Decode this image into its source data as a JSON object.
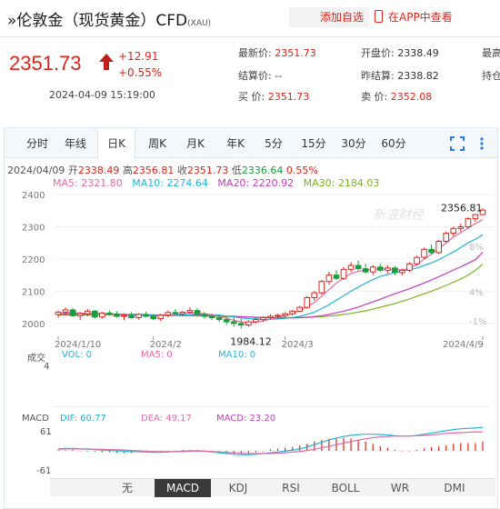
{
  "header": {
    "title": "»伦敦金（现货黄金）CFD",
    "symbol": "(XAU)",
    "add_fav": "添加自选",
    "app_view": "在APP中查看"
  },
  "quote": {
    "price": "2351.73",
    "change_abs": "+12.91",
    "change_pct": "+0.55%",
    "timestamp": "2024-04-09 15:19:00",
    "fields": [
      {
        "label": "最新价:",
        "value": "2351.73"
      },
      {
        "label": "开盘价:",
        "value": "2338.49"
      },
      {
        "label": "最高价:",
        "value": ""
      },
      {
        "label": "结算价:",
        "value": "--"
      },
      {
        "label": "昨结算:",
        "value": "2338.82"
      },
      {
        "label": "持仓量:",
        "value": ""
      },
      {
        "label": "买  价:",
        "value": "2351.73"
      },
      {
        "label": "卖  价:",
        "value": "2352.08"
      },
      {
        "label": "",
        "value": ""
      }
    ]
  },
  "tabs": [
    "分时",
    "年线",
    "日K",
    "周K",
    "月K",
    "年K",
    "5分",
    "15分",
    "30分",
    "60分"
  ],
  "active_tab": "日K",
  "chart_info": {
    "date": "2024/04/09",
    "open_label": "开",
    "open": "2338.49",
    "high_label": "高",
    "high": "2356.81",
    "close_label": "收",
    "close": "2351.73",
    "low_label": "低",
    "low": "2336.64",
    "pct": "0.55%",
    "ma5": "MA5: 2321.80",
    "ma10": "MA10: 2274.64",
    "ma20": "MA20: 2220.92",
    "ma30": "MA30: 2184.03",
    "max_label": "2356.81",
    "min_label": "1984.12",
    "watermark": "新浪财经"
  },
  "volume": {
    "title": "成交",
    "vol": "VOL: 0",
    "ma5": "MA5: 0",
    "ma10": "MA10: 0",
    "axis_top": "4"
  },
  "macd": {
    "title": "MACD",
    "dif": "DIF: 60.77",
    "dea": "DEA: 49.17",
    "macd": "MACD: 23.20",
    "axis_top": "61",
    "axis_bottom": "-61"
  },
  "indicator_tabs": [
    "无",
    "MACD",
    "KDJ",
    "RSI",
    "BOLL",
    "WR",
    "DMI"
  ],
  "active_indicator": "MACD",
  "colors": {
    "up": "#e0241a",
    "down": "#1a9e3a",
    "ma5": "#e36ba6",
    "ma10": "#24b5d6",
    "ma20": "#c43cb8",
    "ma30": "#7bb51f"
  },
  "chart_data": {
    "type": "candlestick",
    "x_ticks": [
      "2024/1/10",
      "2024/2",
      "2024/3",
      "2024/4/9"
    ],
    "y_ticks": [
      2400,
      2300,
      2200,
      2100,
      2000
    ],
    "pct_ticks": [
      "8%",
      "4%",
      "-1%"
    ],
    "ylim": [
      1960,
      2420
    ],
    "ohlc": [
      [
        2028,
        2040,
        2018,
        2035
      ],
      [
        2035,
        2050,
        2025,
        2042
      ],
      [
        2042,
        2048,
        2020,
        2024
      ],
      [
        2024,
        2035,
        2010,
        2030
      ],
      [
        2030,
        2045,
        2022,
        2038
      ],
      [
        2038,
        2042,
        2015,
        2020
      ],
      [
        2020,
        2036,
        2015,
        2032
      ],
      [
        2032,
        2040,
        2025,
        2029
      ],
      [
        2029,
        2038,
        2018,
        2022
      ],
      [
        2022,
        2030,
        2010,
        2025
      ],
      [
        2025,
        2035,
        2015,
        2018
      ],
      [
        2018,
        2032,
        2012,
        2028
      ],
      [
        2028,
        2036,
        2020,
        2022
      ],
      [
        2022,
        2028,
        2010,
        2015
      ],
      [
        2015,
        2030,
        2008,
        2026
      ],
      [
        2026,
        2040,
        2020,
        2034
      ],
      [
        2034,
        2045,
        2028,
        2030
      ],
      [
        2030,
        2038,
        2022,
        2035
      ],
      [
        2035,
        2050,
        2030,
        2040
      ],
      [
        2040,
        2048,
        2025,
        2028
      ],
      [
        2028,
        2035,
        2015,
        2022
      ],
      [
        2022,
        2030,
        2010,
        2018
      ],
      [
        2018,
        2026,
        2005,
        2012
      ],
      [
        2012,
        2020,
        1995,
        2005
      ],
      [
        2005,
        2018,
        1990,
        2000
      ],
      [
        2000,
        2015,
        1984,
        1995
      ],
      [
        1995,
        2010,
        1990,
        2005
      ],
      [
        2005,
        2018,
        2000,
        2012
      ],
      [
        2012,
        2022,
        2005,
        2018
      ],
      [
        2018,
        2028,
        2012,
        2022
      ],
      [
        2022,
        2030,
        2015,
        2025
      ],
      [
        2025,
        2035,
        2018,
        2030
      ],
      [
        2030,
        2042,
        2025,
        2038
      ],
      [
        2038,
        2055,
        2035,
        2050
      ],
      [
        2050,
        2085,
        2045,
        2080
      ],
      [
        2080,
        2100,
        2070,
        2095
      ],
      [
        2095,
        2135,
        2090,
        2130
      ],
      [
        2130,
        2160,
        2120,
        2150
      ],
      [
        2150,
        2165,
        2135,
        2140
      ],
      [
        2140,
        2175,
        2135,
        2168
      ],
      [
        2168,
        2190,
        2160,
        2180
      ],
      [
        2180,
        2195,
        2165,
        2170
      ],
      [
        2170,
        2185,
        2155,
        2160
      ],
      [
        2160,
        2180,
        2150,
        2175
      ],
      [
        2175,
        2185,
        2160,
        2165
      ],
      [
        2165,
        2180,
        2155,
        2172
      ],
      [
        2172,
        2178,
        2150,
        2158
      ],
      [
        2158,
        2170,
        2150,
        2165
      ],
      [
        2165,
        2190,
        2160,
        2185
      ],
      [
        2185,
        2210,
        2180,
        2205
      ],
      [
        2205,
        2235,
        2200,
        2230
      ],
      [
        2230,
        2245,
        2215,
        2220
      ],
      [
        2220,
        2260,
        2215,
        2255
      ],
      [
        2255,
        2285,
        2250,
        2280
      ],
      [
        2280,
        2300,
        2270,
        2295
      ],
      [
        2295,
        2310,
        2285,
        2300
      ],
      [
        2300,
        2330,
        2295,
        2325
      ],
      [
        2325,
        2340,
        2315,
        2338
      ],
      [
        2338,
        2357,
        2336,
        2352
      ]
    ],
    "ma5": [
      2030,
      2032,
      2034,
      2032,
      2031,
      2030,
      2029,
      2028,
      2027,
      2026,
      2025,
      2024,
      2024,
      2023,
      2024,
      2026,
      2028,
      2030,
      2032,
      2032,
      2030,
      2027,
      2022,
      2016,
      2010,
      2005,
      2003,
      2004,
      2008,
      2013,
      2018,
      2024,
      2030,
      2040,
      2052,
      2065,
      2085,
      2105,
      2125,
      2140,
      2155,
      2162,
      2166,
      2168,
      2170,
      2169,
      2167,
      2166,
      2172,
      2182,
      2200,
      2215,
      2232,
      2250,
      2268,
      2282,
      2296,
      2310,
      2322
    ],
    "ma10": [
      2030,
      2031,
      2032,
      2032,
      2031,
      2031,
      2030,
      2030,
      2029,
      2028,
      2027,
      2026,
      2026,
      2025,
      2025,
      2025,
      2026,
      2026,
      2027,
      2028,
      2028,
      2027,
      2026,
      2023,
      2020,
      2017,
      2015,
      2014,
      2013,
      2013,
      2014,
      2016,
      2018,
      2022,
      2028,
      2035,
      2046,
      2058,
      2072,
      2086,
      2100,
      2113,
      2125,
      2136,
      2146,
      2152,
      2158,
      2162,
      2167,
      2172,
      2180,
      2188,
      2198,
      2210,
      2222,
      2236,
      2250,
      2262,
      2275
    ],
    "ma20": [
      2028,
      2028,
      2029,
      2029,
      2029,
      2029,
      2029,
      2029,
      2029,
      2028,
      2028,
      2028,
      2027,
      2027,
      2026,
      2026,
      2026,
      2026,
      2026,
      2026,
      2026,
      2025,
      2024,
      2023,
      2022,
      2021,
      2020,
      2019,
      2018,
      2018,
      2017,
      2017,
      2017,
      2018,
      2019,
      2021,
      2024,
      2028,
      2033,
      2038,
      2044,
      2051,
      2059,
      2067,
      2075,
      2084,
      2092,
      2100,
      2108,
      2117,
      2126,
      2135,
      2145,
      2155,
      2166,
      2176,
      2187,
      2198,
      2221
    ],
    "ma30": [
      2026,
      2026,
      2026,
      2026,
      2026,
      2026,
      2026,
      2026,
      2026,
      2026,
      2026,
      2025,
      2025,
      2025,
      2025,
      2024,
      2024,
      2024,
      2024,
      2023,
      2023,
      2022,
      2022,
      2021,
      2021,
      2020,
      2020,
      2019,
      2019,
      2018,
      2018,
      2018,
      2018,
      2018,
      2019,
      2020,
      2021,
      2023,
      2025,
      2028,
      2031,
      2035,
      2039,
      2044,
      2050,
      2056,
      2062,
      2069,
      2076,
      2084,
      2092,
      2100,
      2109,
      2118,
      2128,
      2138,
      2150,
      2165,
      2184
    ],
    "macd_dif": [
      5,
      6,
      6,
      5,
      4,
      3,
      2,
      1,
      0,
      -1,
      -2,
      -2,
      -3,
      -4,
      -4,
      -3,
      -2,
      -1,
      0,
      0,
      -1,
      -3,
      -5,
      -7,
      -9,
      -10,
      -10,
      -9,
      -7,
      -5,
      -3,
      -1,
      2,
      5,
      10,
      16,
      22,
      28,
      33,
      37,
      40,
      42,
      43,
      43,
      42,
      41,
      39,
      38,
      38,
      40,
      43,
      46,
      49,
      52,
      55,
      57,
      58,
      59,
      61
    ],
    "macd_dea": [
      4,
      5,
      5,
      5,
      5,
      4,
      4,
      3,
      3,
      2,
      1,
      0,
      -1,
      -2,
      -2,
      -2,
      -2,
      -2,
      -1,
      -1,
      -1,
      -2,
      -3,
      -4,
      -5,
      -6,
      -7,
      -7,
      -7,
      -7,
      -6,
      -5,
      -3,
      -2,
      1,
      4,
      8,
      12,
      16,
      20,
      24,
      28,
      31,
      34,
      36,
      37,
      38,
      38,
      38,
      39,
      40,
      41,
      43,
      45,
      46,
      47,
      48,
      49,
      49
    ]
  }
}
